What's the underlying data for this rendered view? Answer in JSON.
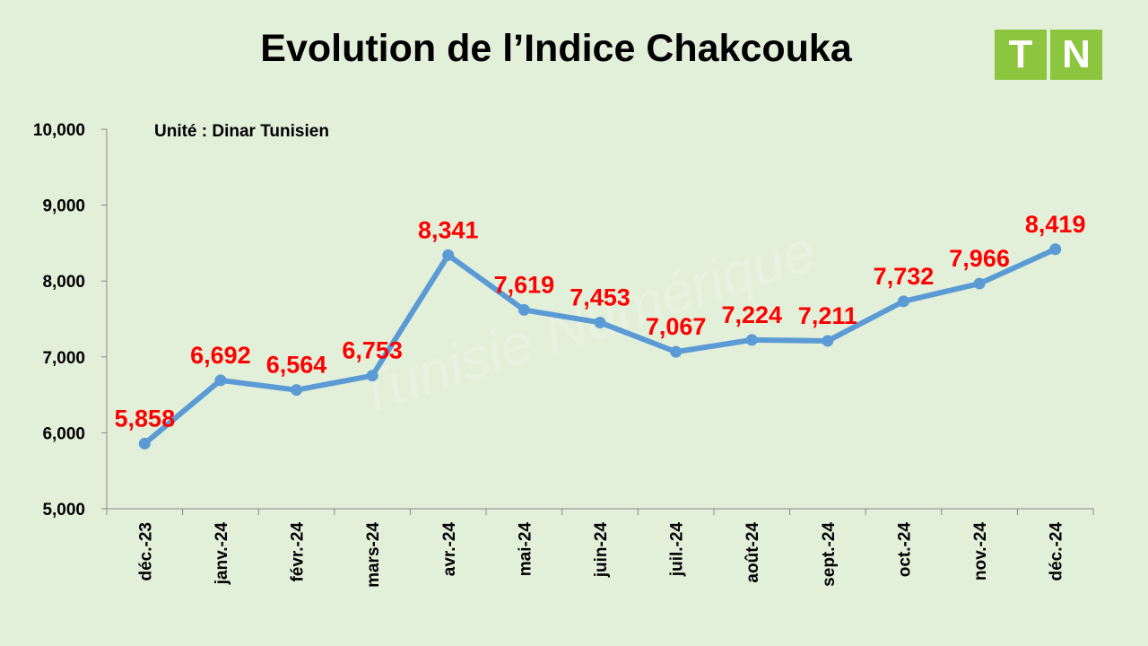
{
  "chart_data": {
    "type": "line",
    "title": "Evolution de l’Indice Chakcouka",
    "annotation": "Unité : Dinar Tunisien",
    "categories": [
      "déc.-23",
      "janv.-24",
      "févr.-24",
      "mars-24",
      "avr.-24",
      "mai-24",
      "juin-24",
      "juil.-24",
      "août-24",
      "sept.-24",
      "oct.-24",
      "nov.-24",
      "déc.-24"
    ],
    "series": [
      {
        "values": [
          5.858,
          6.692,
          6.564,
          6.753,
          8.341,
          7.619,
          7.453,
          7.067,
          7.224,
          7.211,
          7.732,
          7.966,
          8.419
        ],
        "labels": [
          "5,858",
          "6,692",
          "6,564",
          "6,753",
          "8,341",
          "7,619",
          "7,453",
          "7,067",
          "7,224",
          "7,211",
          "7,732",
          "7,966",
          "8,419"
        ]
      }
    ],
    "ylim": [
      5,
      10
    ],
    "yticks": [
      5,
      6,
      7,
      8,
      9,
      10
    ],
    "ytick_labels": [
      "5,000",
      "6,000",
      "7,000",
      "8,000",
      "9,000",
      "10,000"
    ],
    "grid": false,
    "legend": "none"
  },
  "colors": {
    "background": "#e2efd9",
    "line": "#5b9bd5",
    "data_label": "#ff0000",
    "logo": "#8cc63f"
  },
  "logo": {
    "letters": [
      "T",
      "N"
    ]
  },
  "watermark": "Tunisie Numérique"
}
